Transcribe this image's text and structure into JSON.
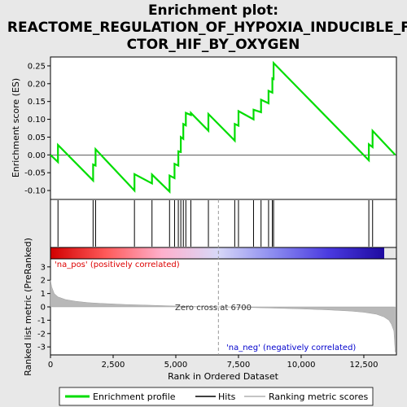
{
  "chart_data": {
    "type": "line",
    "title_lines": [
      "Enrichment plot:",
      "REACTOME_REGULATION_OF_HYPOXIA_INDUCIBLE_FA",
      "CTOR_HIF_BY_OXYGEN"
    ],
    "ylabel_top": "Enrichment score (ES)",
    "ylabel_bottom": "Ranked list metric (PreRanked)",
    "xlabel": "Rank in Ordered Dataset",
    "x_range": [
      0,
      13800
    ],
    "x_ticks": [
      0,
      2500,
      5000,
      7500,
      10000,
      12500
    ],
    "x_tick_labels": [
      "0",
      "2,500",
      "5,000",
      "7,500",
      "10,000",
      "12,500"
    ],
    "es_ylim": [
      -0.125,
      0.275
    ],
    "es_ticks": [
      -0.1,
      -0.05,
      0.0,
      0.05,
      0.1,
      0.15,
      0.2,
      0.25
    ],
    "es_tick_labels": [
      "-0.10",
      "-0.05",
      "0.00",
      "0.05",
      "0.10",
      "0.15",
      "0.20",
      "0.25"
    ],
    "metric_ylim": [
      -3.6,
      3.6
    ],
    "metric_ticks": [
      -3,
      -2,
      -1,
      0,
      1,
      2,
      3
    ],
    "metric_tick_labels": [
      "-3",
      "-2",
      "-1",
      "0",
      "1",
      "2",
      "3"
    ],
    "hits": [
      300,
      1700,
      1800,
      3350,
      4050,
      4750,
      4950,
      5100,
      5200,
      5300,
      5400,
      5600,
      6300,
      7350,
      7500,
      8100,
      8400,
      8700,
      8850,
      8900,
      12700,
      12850
    ],
    "es_profile": {
      "x": [
        0,
        300,
        300,
        1700,
        1700,
        1800,
        1800,
        3350,
        3350,
        4050,
        4050,
        4750,
        4750,
        4950,
        4950,
        5100,
        5100,
        5200,
        5200,
        5300,
        5300,
        5400,
        5400,
        5600,
        5600,
        6300,
        6300,
        7350,
        7350,
        7500,
        7500,
        8100,
        8100,
        8400,
        8400,
        8700,
        8700,
        8850,
        8850,
        8900,
        8900,
        12700,
        12700,
        12850,
        12850,
        13750
      ],
      "y": [
        0.0,
        -0.02,
        0.028,
        -0.072,
        -0.027,
        -0.03,
        0.016,
        -0.1,
        -0.054,
        -0.08,
        -0.055,
        -0.103,
        -0.058,
        -0.065,
        -0.025,
        -0.03,
        0.01,
        0.008,
        0.05,
        0.045,
        0.087,
        0.083,
        0.118,
        0.112,
        0.118,
        0.068,
        0.115,
        0.04,
        0.087,
        0.082,
        0.123,
        0.1,
        0.127,
        0.12,
        0.155,
        0.145,
        0.18,
        0.175,
        0.215,
        0.213,
        0.258,
        -0.015,
        0.03,
        0.022,
        0.068,
        0.0
      ]
    },
    "metric_curve": {
      "x": [
        0,
        50,
        150,
        300,
        600,
        1000,
        1500,
        2000,
        3000,
        4000,
        5000,
        6000,
        6700,
        8000,
        9000,
        10000,
        11000,
        12000,
        12500,
        13000,
        13300,
        13500,
        13600,
        13700,
        13750
      ],
      "y": [
        2.0,
        1.5,
        1.0,
        0.75,
        0.55,
        0.42,
        0.32,
        0.26,
        0.18,
        0.12,
        0.06,
        0.02,
        0.0,
        -0.05,
        -0.1,
        -0.15,
        -0.22,
        -0.32,
        -0.4,
        -0.55,
        -0.75,
        -1.0,
        -1.3,
        -1.8,
        -3.4
      ]
    },
    "colorbar_stops": [
      "#d10000",
      "#ff5a5a",
      "#ffb0cc",
      "#d8d8f8",
      "#8c8cf0",
      "#4a3ae0",
      "#1e0aa0"
    ],
    "annotations": {
      "pos": "'na_pos' (positively correlated)",
      "neg": "'na_neg' (negatively correlated)",
      "zero": "Zero cross at 6700"
    },
    "zero_cross": 6700,
    "legend": [
      "Enrichment profile",
      "Hits",
      "Ranking metric scores"
    ],
    "colors": {
      "profile": "#00dd00",
      "hits": "#000000",
      "metric": "#b0b0b0",
      "pos_text": "#dd0000",
      "neg_text": "#0000cc"
    }
  }
}
